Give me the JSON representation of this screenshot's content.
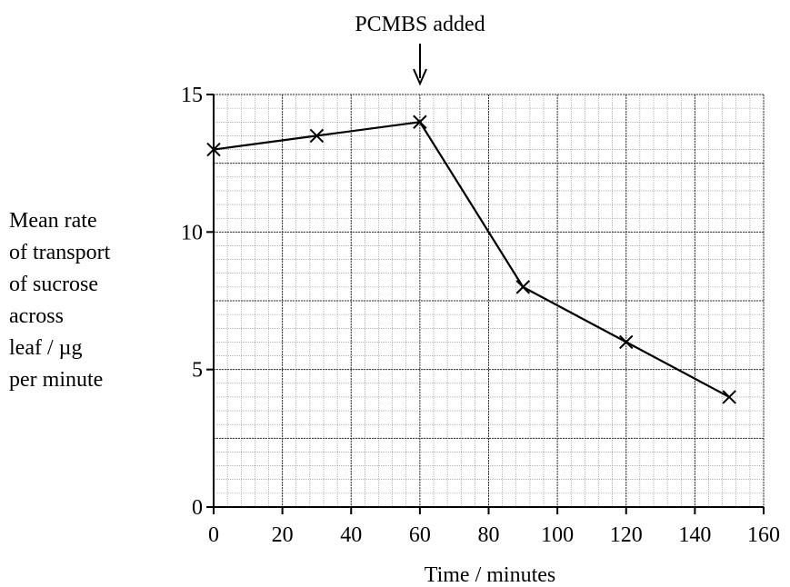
{
  "chart_data": {
    "type": "line",
    "title": "",
    "xlabel": "Time / minutes",
    "ylabel_lines": [
      "Mean rate",
      "of transport",
      "of sucrose",
      "across",
      "leaf / µg",
      "per minute"
    ],
    "xlim": [
      0,
      160
    ],
    "ylim": [
      0,
      15
    ],
    "xticks": [
      0,
      20,
      40,
      60,
      80,
      100,
      120,
      140,
      160
    ],
    "yticks": [
      0,
      5,
      10,
      15
    ],
    "grid": true,
    "marker": "x",
    "series": [
      {
        "x": [
          0,
          30,
          60,
          90,
          120,
          150
        ],
        "y": [
          13,
          13.5,
          14,
          8,
          6,
          4
        ]
      }
    ],
    "annotation": {
      "text": "PCMBS added",
      "x": 60
    }
  }
}
